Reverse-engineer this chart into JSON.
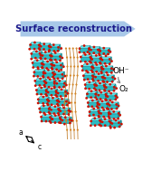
{
  "title": "Surface reconstruction",
  "arrow_color": "#a8c8e8",
  "arrow_text_color": "#1a1a8c",
  "bg_color": "#ffffff",
  "crystal_teal": "#20b8c0",
  "crystal_teal_light": "#5de0e8",
  "crystal_teal_dark": "#007a82",
  "oxygen_color": "#cc1100",
  "selenium_color": "#d4882a",
  "selenium_line": "#c07820",
  "oh_label": "OH⁻",
  "o2_label": "O₂",
  "axis_a": "a",
  "axis_c": "c",
  "arrow_curved_color": "#888888"
}
